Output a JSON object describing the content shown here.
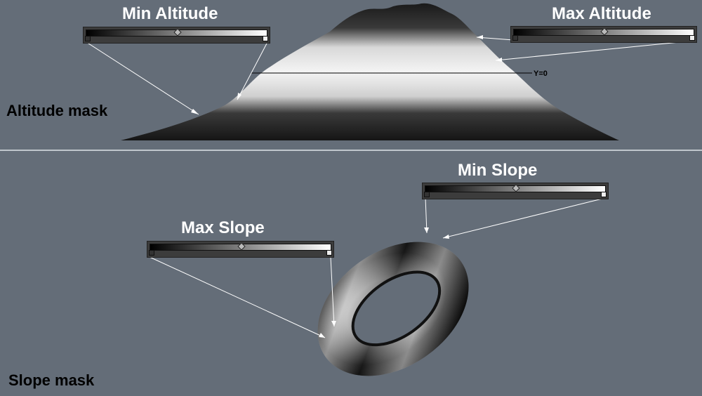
{
  "labels": {
    "min_altitude": "Min Altitude",
    "max_altitude": "Max Altitude",
    "altitude_mask": "Altitude mask",
    "y0": "Y=0",
    "min_slope": "Min Slope",
    "max_slope": "Max Slope",
    "slope_mask": "Slope mask"
  },
  "colors": {
    "background": "#646d78",
    "divider": "#dfe3e8",
    "title_text": "#ffffff",
    "section_text": "#000000",
    "gradient_start": "#000000",
    "gradient_end": "#ffffff",
    "pointer_line": "#ffffff"
  },
  "icons": {
    "gradient_knot_left": "knot-dark-icon",
    "gradient_knot_right": "knot-light-icon",
    "gradient_midpoint": "diamond-midpoint-icon"
  }
}
